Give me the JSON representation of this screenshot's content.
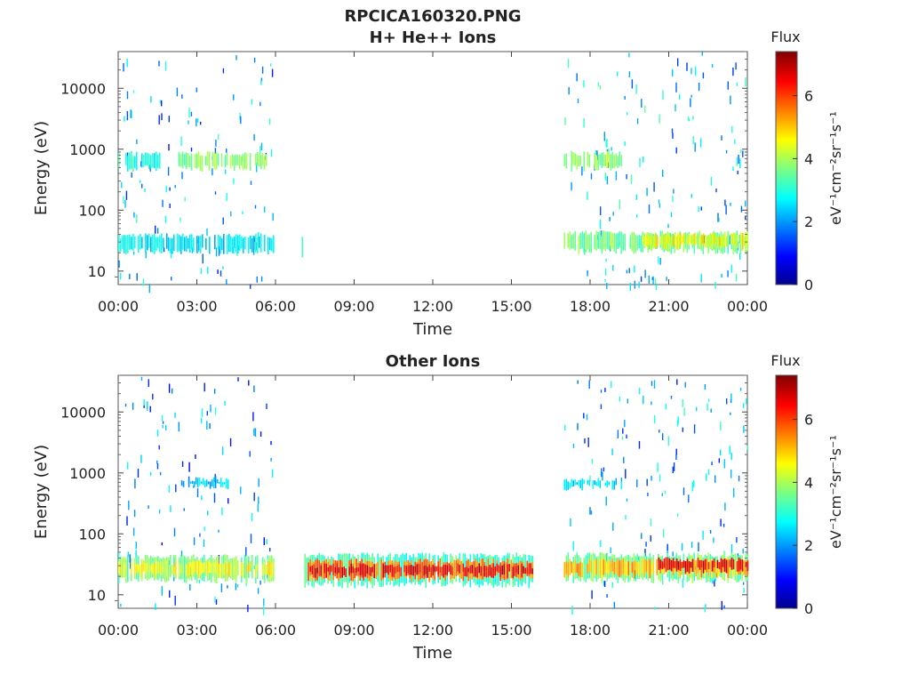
{
  "figure": {
    "title_line1": "RPCICA160320.PNG",
    "title_line2": "H+ He++ Ions"
  },
  "chart_data": [
    {
      "type": "heatmap",
      "title": "H+ He++ Ions",
      "xlabel": "Time",
      "ylabel": "Energy (eV)",
      "x_ticks": [
        "00:00",
        "03:00",
        "06:00",
        "09:00",
        "12:00",
        "15:00",
        "18:00",
        "21:00",
        "00:00"
      ],
      "x_range_hours": [
        0,
        24
      ],
      "y_scale": "log",
      "y_ticks": [
        10,
        100,
        1000,
        10000
      ],
      "y_range": [
        6,
        40000
      ],
      "colorbar": {
        "label": "Flux",
        "unit": "eV⁻¹cm⁻²sr⁻¹s⁻¹",
        "ticks": [
          0,
          2,
          4,
          6
        ],
        "range": [
          0,
          7.4
        ],
        "colormap": "jet"
      },
      "bands": [
        {
          "t_start": 0.0,
          "t_end": 5.9,
          "e_low": 22,
          "e_high": 38,
          "flux": 2.6
        },
        {
          "t_start": 2.3,
          "t_end": 5.7,
          "e_low": 500,
          "e_high": 850,
          "flux": 3.8
        },
        {
          "t_start": 0.0,
          "t_end": 1.6,
          "e_low": 500,
          "e_high": 850,
          "flux": 3.0
        },
        {
          "t_start": 7.0,
          "t_end": 7.1,
          "e_low": 17,
          "e_high": 35,
          "flux": 3.2
        },
        {
          "t_start": 17.0,
          "t_end": 24.0,
          "e_low": 22,
          "e_high": 42,
          "flux": 3.6
        },
        {
          "t_start": 20.0,
          "t_end": 24.0,
          "e_low": 26,
          "e_high": 40,
          "flux": 4.6
        },
        {
          "t_start": 17.0,
          "t_end": 19.2,
          "e_low": 500,
          "e_high": 850,
          "flux": 3.8
        }
      ],
      "scatter_segments": [
        {
          "t_start": 0.0,
          "t_end": 5.9,
          "flux": 2.2
        },
        {
          "t_start": 17.0,
          "t_end": 24.0,
          "flux": 2.4
        }
      ]
    },
    {
      "type": "heatmap",
      "title": "Other Ions",
      "xlabel": "Time",
      "ylabel": "Energy (eV)",
      "x_ticks": [
        "00:00",
        "03:00",
        "06:00",
        "09:00",
        "12:00",
        "15:00",
        "18:00",
        "21:00",
        "00:00"
      ],
      "x_range_hours": [
        0,
        24
      ],
      "y_scale": "log",
      "y_ticks": [
        10,
        100,
        1000,
        10000
      ],
      "y_range": [
        6,
        40000
      ],
      "colorbar": {
        "label": "Flux",
        "unit": "eV⁻¹cm⁻²sr⁻¹s⁻¹",
        "ticks": [
          0,
          2,
          4,
          6
        ],
        "range": [
          0,
          7.4
        ],
        "colormap": "jet"
      },
      "bands": [
        {
          "t_start": 0.0,
          "t_end": 5.9,
          "e_low": 18,
          "e_high": 42,
          "flux": 3.6
        },
        {
          "t_start": 0.0,
          "t_end": 5.9,
          "e_low": 22,
          "e_high": 34,
          "flux": 4.6
        },
        {
          "t_start": 7.1,
          "t_end": 15.8,
          "e_low": 15,
          "e_high": 45,
          "flux": 3.2
        },
        {
          "t_start": 7.1,
          "t_end": 15.8,
          "e_low": 19,
          "e_high": 36,
          "flux": 5.6
        },
        {
          "t_start": 7.3,
          "t_end": 15.8,
          "e_low": 22,
          "e_high": 30,
          "flux": 6.6
        },
        {
          "t_start": 17.0,
          "t_end": 24.0,
          "e_low": 18,
          "e_high": 45,
          "flux": 3.6
        },
        {
          "t_start": 17.0,
          "t_end": 24.0,
          "e_low": 22,
          "e_high": 36,
          "flux": 5.2
        },
        {
          "t_start": 20.6,
          "t_end": 24.0,
          "e_low": 26,
          "e_high": 38,
          "flux": 6.6
        },
        {
          "t_start": 2.4,
          "t_end": 4.2,
          "e_low": 620,
          "e_high": 780,
          "flux": 2.4
        },
        {
          "t_start": 17.0,
          "t_end": 19.2,
          "e_low": 600,
          "e_high": 760,
          "flux": 2.5
        }
      ],
      "scatter_segments": [
        {
          "t_start": 0.0,
          "t_end": 5.9,
          "flux": 2.0
        },
        {
          "t_start": 17.0,
          "t_end": 24.0,
          "flux": 2.2
        }
      ]
    }
  ]
}
